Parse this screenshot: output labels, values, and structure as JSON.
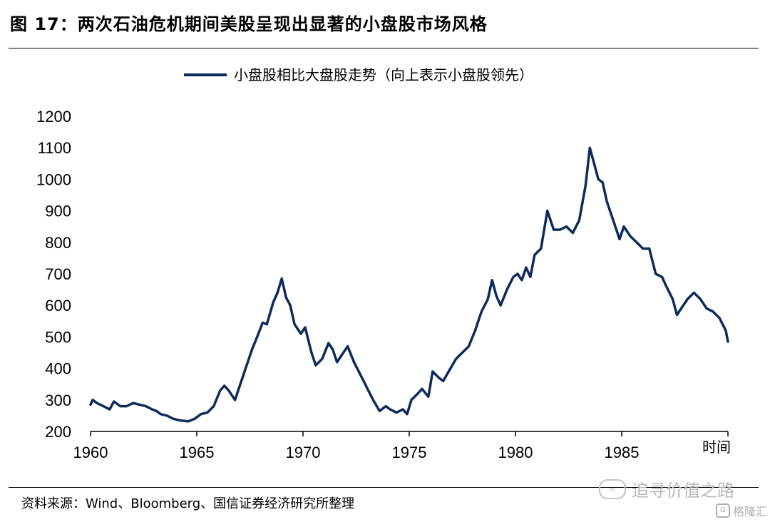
{
  "figure": {
    "title": "图 17：两次石油危机期间美股呈现出显著的小盘股市场风格",
    "source": "资料来源：Wind、Bloomberg、国信证券经济研究所整理"
  },
  "watermark": {
    "text": "追寻价值之路",
    "icon": "wechat-icon",
    "secondary_text": "格隆汇",
    "secondary_icon": "gelonghui-logo-icon"
  },
  "colors": {
    "series": "#0d2b5a"
  },
  "chart_data": {
    "type": "line",
    "title": "",
    "xlabel": "时间",
    "ylabel": "",
    "xlim": [
      1960,
      1990
    ],
    "ylim": [
      200,
      1200
    ],
    "grid": false,
    "legend_position": "top-center",
    "x_ticks": [
      1960,
      1965,
      1970,
      1975,
      1980,
      1985
    ],
    "y_ticks": [
      200,
      300,
      400,
      500,
      600,
      700,
      800,
      900,
      1000,
      1100,
      1200
    ],
    "series": [
      {
        "name": "小盘股相比大盘股走势（向上表示小盘股领先）",
        "x": [
          1960.0,
          1960.1,
          1960.3,
          1960.6,
          1960.9,
          1961.1,
          1961.4,
          1961.7,
          1962.0,
          1962.3,
          1962.6,
          1962.9,
          1963.1,
          1963.3,
          1963.6,
          1963.9,
          1964.2,
          1964.6,
          1964.9,
          1965.2,
          1965.5,
          1965.8,
          1966.1,
          1966.3,
          1966.5,
          1966.8,
          1967.0,
          1967.3,
          1967.6,
          1967.9,
          1968.1,
          1968.3,
          1968.6,
          1968.8,
          1969.0,
          1969.2,
          1969.4,
          1969.6,
          1969.9,
          1970.1,
          1970.4,
          1970.6,
          1970.9,
          1971.2,
          1971.4,
          1971.6,
          1971.9,
          1972.1,
          1972.4,
          1972.7,
          1973.0,
          1973.3,
          1973.6,
          1973.9,
          1974.1,
          1974.4,
          1974.7,
          1974.9,
          1975.1,
          1975.4,
          1975.6,
          1975.9,
          1976.1,
          1976.4,
          1976.6,
          1976.9,
          1977.2,
          1977.5,
          1977.8,
          1978.1,
          1978.4,
          1978.7,
          1978.9,
          1979.1,
          1979.3,
          1979.6,
          1979.9,
          1980.1,
          1980.3,
          1980.5,
          1980.7,
          1980.9,
          1981.2,
          1981.5,
          1981.8,
          1982.1,
          1982.4,
          1982.7,
          1983.0,
          1983.3,
          1983.5,
          1983.7,
          1983.9,
          1984.1,
          1984.3,
          1984.6,
          1984.9,
          1985.1,
          1985.4,
          1985.7,
          1986.0,
          1986.3,
          1986.6,
          1986.9,
          1987.1,
          1987.4,
          1987.6,
          1987.8,
          1988.1,
          1988.4,
          1988.7,
          1989.0,
          1989.3,
          1989.6,
          1989.9,
          1990.0
        ],
        "values": [
          285,
          300,
          290,
          280,
          270,
          295,
          280,
          280,
          290,
          285,
          280,
          270,
          265,
          255,
          250,
          240,
          235,
          232,
          240,
          255,
          260,
          280,
          330,
          345,
          330,
          300,
          340,
          400,
          460,
          510,
          545,
          540,
          610,
          640,
          685,
          625,
          600,
          540,
          510,
          530,
          450,
          410,
          430,
          480,
          460,
          420,
          450,
          470,
          420,
          380,
          340,
          300,
          265,
          280,
          270,
          260,
          270,
          255,
          300,
          320,
          335,
          310,
          390,
          370,
          360,
          395,
          430,
          450,
          470,
          520,
          580,
          620,
          680,
          630,
          600,
          650,
          690,
          700,
          680,
          720,
          690,
          760,
          780,
          900,
          840,
          840,
          850,
          830,
          870,
          980,
          1100,
          1050,
          1000,
          990,
          930,
          870,
          810,
          850,
          820,
          800,
          780,
          780,
          700,
          690,
          660,
          620,
          570,
          590,
          620,
          640,
          620,
          590,
          580,
          560,
          520,
          485
        ]
      }
    ]
  }
}
